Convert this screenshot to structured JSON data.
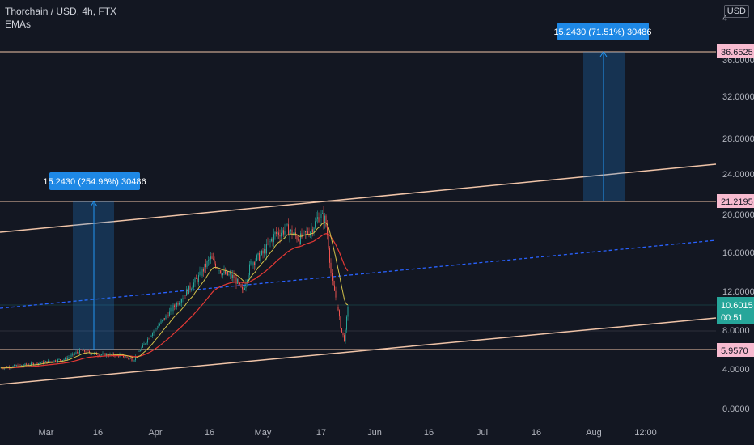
{
  "legend": {
    "symbol": "Thorchain / USD, 4h, FTX",
    "indicator": "EMAs"
  },
  "currency": "USD",
  "price_axis": [
    "36.0000",
    "32.0000",
    "28.0000",
    "24.0000",
    "20.0000",
    "16.0000",
    "12.0000",
    "8.0000",
    "4.0000",
    "0.0000"
  ],
  "price_axis_top": "4",
  "time_axis": [
    "Mar",
    "16",
    "Apr",
    "16",
    "May",
    "17",
    "Jun",
    "16",
    "Jul",
    "16",
    "Aug",
    "12:00"
  ],
  "tags": {
    "high_target": "36.6525",
    "level_mid": "21.2195",
    "current_price": "10.6015",
    "countdown": "00:51",
    "low_level": "5.9570"
  },
  "measures": [
    {
      "label": "15.2430 (254.96%) 30486"
    },
    {
      "label": "15.2430 (71.51%) 30486"
    }
  ],
  "colors": {
    "background": "#131722",
    "level_line": "#f0c4a8",
    "pink_tag": "#f8bbd0",
    "measure_box": "#1e88e5",
    "current": "#26a69a",
    "dashed": "#2962ff",
    "ema_red": "#e53935",
    "ema_yellow": "#d4c24a"
  }
}
